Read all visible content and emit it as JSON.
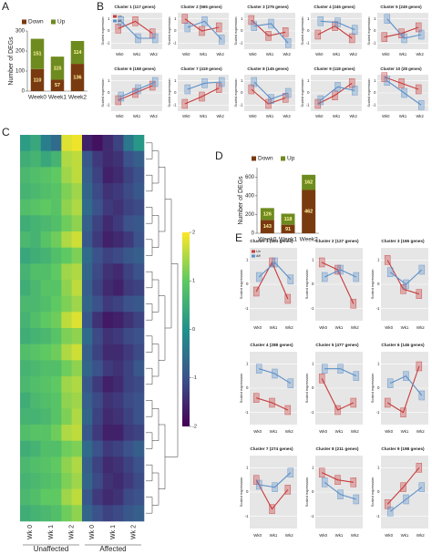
{
  "chart_data": [
    {
      "type": "bar",
      "stacked": true,
      "panel": "A",
      "y_label": "Number of DEGs",
      "categories": [
        "Week0",
        "Week1",
        "Week2"
      ],
      "series": [
        {
          "name": "Down",
          "color": "#7a3a10",
          "values": [
            110,
            57,
            136
          ]
        },
        {
          "name": "Up",
          "color": "#6e8b1f",
          "values": [
            151,
            115,
            114
          ]
        }
      ],
      "ylim": [
        0,
        300
      ],
      "yticks": [
        0,
        100,
        200,
        300
      ]
    },
    {
      "type": "line",
      "panel": "B",
      "title": "Cluster 1 (117 genes)",
      "y_label": "Scaled expression",
      "categories": [
        "Wk0",
        "Wk1",
        "Wk2"
      ],
      "legend": true,
      "series": [
        {
          "name": "Un",
          "color": "#c83a3a",
          "values": [
            0.2,
            0.8,
            -0.2
          ]
        },
        {
          "name": "Aff",
          "color": "#5b8fc9",
          "values": [
            0.8,
            -0.6,
            -0.6
          ]
        }
      ],
      "ylim": [
        -1.5,
        1.5
      ],
      "yticks": [
        -1,
        0,
        1
      ]
    },
    {
      "type": "line",
      "title": "Cluster 2 (565 genes)",
      "y_label": "Scaled expression",
      "categories": [
        "Wk0",
        "Wk1",
        "Wk2"
      ],
      "series": [
        {
          "color": "#c83a3a",
          "values": [
            1.0,
            0.0,
            0.3
          ]
        },
        {
          "color": "#5b8fc9",
          "values": [
            0.3,
            0.8,
            -0.7
          ]
        }
      ],
      "ylim": [
        -1.5,
        1.5
      ],
      "yticks": [
        -1,
        0,
        1
      ]
    },
    {
      "type": "line",
      "title": "Cluster 3 (276 genes)",
      "y_label": "Scaled expression",
      "categories": [
        "Wk0",
        "Wk1",
        "Wk2"
      ],
      "series": [
        {
          "color": "#c83a3a",
          "values": [
            0.9,
            -0.4,
            -0.1
          ]
        },
        {
          "color": "#5b8fc9",
          "values": [
            0.4,
            0.6,
            -1.0
          ]
        }
      ],
      "ylim": [
        -1.5,
        1.5
      ],
      "yticks": [
        -1,
        0,
        1
      ]
    },
    {
      "type": "line",
      "title": "Cluster 4 (245 genes)",
      "y_label": "Scaled expression",
      "categories": [
        "Wk0",
        "Wk1",
        "Wk2"
      ],
      "series": [
        {
          "color": "#c83a3a",
          "values": [
            -0.3,
            0.4,
            -0.6
          ]
        },
        {
          "color": "#5b8fc9",
          "values": [
            0.8,
            0.7,
            0.1
          ]
        }
      ],
      "ylim": [
        -1.5,
        1.5
      ],
      "yticks": [
        -1,
        0,
        1
      ]
    },
    {
      "type": "line",
      "title": "Cluster 5 (249 genes)",
      "y_label": "Scaled expression",
      "categories": [
        "Wk0",
        "Wk1",
        "Wk2"
      ],
      "series": [
        {
          "color": "#c83a3a",
          "values": [
            -0.5,
            -0.2,
            0.3
          ]
        },
        {
          "color": "#5b8fc9",
          "values": [
            1.0,
            -0.6,
            -0.3
          ]
        }
      ],
      "ylim": [
        -1.5,
        1.5
      ],
      "yticks": [
        -1,
        0,
        1
      ]
    },
    {
      "type": "line",
      "title": "Cluster 6 (158 genes)",
      "y_label": "Scaled expression",
      "categories": [
        "Wk0",
        "Wk1",
        "Wk2"
      ],
      "series": [
        {
          "color": "#c83a3a",
          "values": [
            -0.6,
            0.0,
            0.6
          ]
        },
        {
          "color": "#5b8fc9",
          "values": [
            -0.3,
            0.3,
            0.9
          ]
        }
      ],
      "ylim": [
        -1.5,
        1.5
      ],
      "yticks": [
        -1,
        0,
        1
      ]
    },
    {
      "type": "line",
      "title": "Cluster 7 (419 genes)",
      "y_label": "Scaled expression",
      "categories": [
        "Wk0",
        "Wk1",
        "Wk2"
      ],
      "series": [
        {
          "color": "#c83a3a",
          "values": [
            -0.9,
            -0.3,
            0.4
          ]
        },
        {
          "color": "#5b8fc9",
          "values": [
            0.3,
            0.8,
            0.9
          ]
        }
      ],
      "ylim": [
        -1.5,
        1.5
      ],
      "yticks": [
        -1,
        0,
        1
      ]
    },
    {
      "type": "line",
      "title": "Cluster 8 (145 genes)",
      "y_label": "Scaled expression",
      "categories": [
        "Wk0",
        "Wk1",
        "Wk2"
      ],
      "series": [
        {
          "color": "#c83a3a",
          "values": [
            0.3,
            -0.9,
            -0.4
          ]
        },
        {
          "color": "#5b8fc9",
          "values": [
            0.9,
            -0.5,
            0.0
          ]
        }
      ],
      "ylim": [
        -1.5,
        1.5
      ],
      "yticks": [
        -1,
        0,
        1
      ]
    },
    {
      "type": "line",
      "title": "Cluster 9 (118 genes)",
      "y_label": "Scaled expression",
      "categories": [
        "Wk0",
        "Wk1",
        "Wk2"
      ],
      "series": [
        {
          "color": "#c83a3a",
          "values": [
            -0.9,
            -0.2,
            0.8
          ]
        },
        {
          "color": "#5b8fc9",
          "values": [
            -0.6,
            0.5,
            0.2
          ]
        }
      ],
      "ylim": [
        -1.5,
        1.5
      ],
      "yticks": [
        -1,
        0,
        1
      ]
    },
    {
      "type": "line",
      "title": "Cluster 10 (28 genes)",
      "y_label": "Scaled expression",
      "categories": [
        "Wk0",
        "Wk1",
        "Wk2"
      ],
      "series": [
        {
          "color": "#c83a3a",
          "values": [
            1.3,
            0.8,
            0.3
          ]
        },
        {
          "color": "#5b8fc9",
          "values": [
            1.0,
            0.0,
            -1.0
          ]
        }
      ],
      "ylim": [
        -1.5,
        1.5
      ],
      "yticks": [
        -1,
        0,
        1
      ]
    },
    {
      "type": "heatmap",
      "panel": "C",
      "column_labels": [
        "Wk 0",
        "Wk 1",
        "Wk 2",
        "Wk 0",
        "Wk 1",
        "Wk 2"
      ],
      "groups": [
        "Unaffected",
        "Affected"
      ],
      "colors": [
        "#440154",
        "#3b528b",
        "#21918c",
        "#5ec962",
        "#fde725"
      ],
      "zlim": [
        -2,
        2
      ],
      "zticks": [
        -2,
        -1,
        0,
        1,
        2
      ],
      "matrix": [
        [
          0.2,
          0.4,
          -0.3,
          -0.6,
          1.8,
          1.9,
          -1.6,
          -1.8,
          -1.5,
          -1.2,
          -0.4,
          0.1
        ],
        [
          0.5,
          0.6,
          0.4,
          0.6,
          1.5,
          1.6,
          -0.9,
          -1.3,
          -1.5,
          -1.4,
          -1.0,
          -0.8
        ],
        [
          0.7,
          0.8,
          0.9,
          1.0,
          1.4,
          1.6,
          -0.8,
          -1.2,
          -1.6,
          -1.5,
          -1.2,
          -1.0
        ],
        [
          0.6,
          0.7,
          0.8,
          0.9,
          1.2,
          1.4,
          -0.7,
          -1.1,
          -1.4,
          -1.3,
          -1.1,
          -0.9
        ],
        [
          0.8,
          0.9,
          1.0,
          0.9,
          1.3,
          1.5,
          -0.6,
          -1.0,
          -1.3,
          -1.4,
          -1.2,
          -1.1
        ],
        [
          0.5,
          0.6,
          0.7,
          0.8,
          1.1,
          1.3,
          -0.8,
          -1.2,
          -1.5,
          -1.3,
          -1.0,
          -0.9
        ],
        [
          0.7,
          0.6,
          0.9,
          1.1,
          1.5,
          1.7,
          -0.9,
          -1.3,
          -1.6,
          -1.5,
          -1.3,
          -1.0
        ],
        [
          0.4,
          0.5,
          0.6,
          0.8,
          1.0,
          1.2,
          -0.6,
          -1.0,
          -1.2,
          -1.1,
          -0.9,
          -0.8
        ],
        [
          0.6,
          0.8,
          0.8,
          1.0,
          1.4,
          1.5,
          -0.7,
          -1.1,
          -1.4,
          -1.5,
          -1.2,
          -1.0
        ],
        [
          0.5,
          0.7,
          0.9,
          0.9,
          1.3,
          1.6,
          -0.8,
          -1.2,
          -1.5,
          -1.6,
          -1.3,
          -1.2
        ],
        [
          0.7,
          0.7,
          0.8,
          1.0,
          1.2,
          1.4,
          -0.7,
          -1.0,
          -1.3,
          -1.2,
          -1.0,
          -0.9
        ],
        [
          0.6,
          0.8,
          1.0,
          1.1,
          1.6,
          1.8,
          -0.9,
          -1.4,
          -1.7,
          -1.6,
          -1.4,
          -1.2
        ],
        [
          0.5,
          0.6,
          0.7,
          0.9,
          1.2,
          1.3,
          -0.6,
          -1.1,
          -1.4,
          -1.3,
          -1.1,
          -1.0
        ],
        [
          0.8,
          0.9,
          1.0,
          1.1,
          1.5,
          1.7,
          -0.8,
          -1.2,
          -1.5,
          -1.5,
          -1.3,
          -1.1
        ],
        [
          0.6,
          0.7,
          0.8,
          0.8,
          1.1,
          1.3,
          -0.7,
          -1.0,
          -1.3,
          -1.4,
          -1.2,
          -0.9
        ],
        [
          0.7,
          0.8,
          0.9,
          1.0,
          1.4,
          1.5,
          -0.9,
          -1.3,
          -1.6,
          -1.5,
          -1.2,
          -1.1
        ],
        [
          0.5,
          0.7,
          0.8,
          0.9,
          1.3,
          1.4,
          -0.8,
          -1.1,
          -1.4,
          -1.3,
          -1.1,
          -1.0
        ],
        [
          0.6,
          0.6,
          0.7,
          0.9,
          1.2,
          1.5,
          -0.7,
          -1.2,
          -1.5,
          -1.4,
          -1.2,
          -1.0
        ],
        [
          0.8,
          0.9,
          0.9,
          1.1,
          1.5,
          1.6,
          -0.9,
          -1.3,
          -1.6,
          -1.6,
          -1.3,
          -1.2
        ],
        [
          0.5,
          0.6,
          0.8,
          0.8,
          1.1,
          1.2,
          -0.6,
          -1.0,
          -1.3,
          -1.2,
          -1.0,
          -0.8
        ],
        [
          0.7,
          0.8,
          0.9,
          1.0,
          1.3,
          1.5,
          -0.8,
          -1.2,
          -1.5,
          -1.4,
          -1.2,
          -1.0
        ],
        [
          0.6,
          0.7,
          0.8,
          0.9,
          1.2,
          1.4,
          -0.7,
          -1.1,
          -1.4,
          -1.5,
          -1.3,
          -1.1
        ],
        [
          0.7,
          0.8,
          1.0,
          1.0,
          1.4,
          1.6,
          -0.9,
          -1.3,
          -1.5,
          -1.4,
          -1.1,
          -1.0
        ],
        [
          0.5,
          0.6,
          0.7,
          0.8,
          1.1,
          1.3,
          -0.7,
          -1.0,
          -1.2,
          -1.1,
          -0.9,
          -0.8
        ]
      ]
    },
    {
      "type": "bar",
      "stacked": true,
      "panel": "D",
      "y_label": "Number of DEGs",
      "categories": [
        "Week0",
        "Week1",
        "Week2"
      ],
      "series": [
        {
          "name": "Down",
          "color": "#7a3a10",
          "values": [
            143,
            91,
            462
          ]
        },
        {
          "name": "Up",
          "color": "#6e8b1f",
          "values": [
            126,
            118,
            162
          ]
        }
      ],
      "ylim": [
        0,
        700
      ],
      "yticks": [
        0,
        200,
        400,
        600
      ]
    },
    {
      "type": "line",
      "panel": "E",
      "title": "Cluster 1 (404 genes)",
      "y_label": "Scaled expression",
      "categories": [
        "Wk0",
        "Wk1",
        "Wk2"
      ],
      "legend": true,
      "series": [
        {
          "name": "Un",
          "color": "#c83a3a",
          "values": [
            -0.3,
            0.9,
            -0.6
          ]
        },
        {
          "name": "Aff",
          "color": "#5b8fc9",
          "values": [
            0.3,
            0.9,
            0.2
          ]
        }
      ],
      "ylim": [
        -1.5,
        1.5
      ],
      "yticks": [
        -1,
        0,
        1
      ]
    },
    {
      "type": "line",
      "title": "Cluster 2 (127 genes)",
      "y_label": "Scaled expression",
      "categories": [
        "Wk0",
        "Wk1",
        "Wk2"
      ],
      "series": [
        {
          "color": "#c83a3a",
          "values": [
            0.9,
            0.6,
            -0.8
          ]
        },
        {
          "color": "#5b8fc9",
          "values": [
            0.3,
            0.6,
            0.3
          ]
        }
      ],
      "ylim": [
        -1.5,
        1.5
      ],
      "yticks": [
        -1,
        0,
        1
      ]
    },
    {
      "type": "line",
      "title": "Cluster 3 (165 genes)",
      "y_label": "Scaled expression",
      "categories": [
        "Wk0",
        "Wk1",
        "Wk2"
      ],
      "series": [
        {
          "color": "#c83a3a",
          "values": [
            1.0,
            -0.2,
            -0.4
          ]
        },
        {
          "color": "#5b8fc9",
          "values": [
            0.5,
            0.0,
            0.6
          ]
        }
      ],
      "ylim": [
        -1.5,
        1.5
      ],
      "yticks": [
        -1,
        0,
        1
      ]
    },
    {
      "type": "line",
      "title": "Cluster 4 (288 genes)",
      "y_label": "Scaled expression",
      "categories": [
        "Wk0",
        "Wk1",
        "Wk2"
      ],
      "series": [
        {
          "color": "#c83a3a",
          "values": [
            -0.4,
            -0.6,
            -0.9
          ]
        },
        {
          "color": "#5b8fc9",
          "values": [
            0.8,
            0.6,
            0.2
          ]
        }
      ],
      "ylim": [
        -1.5,
        1.5
      ],
      "yticks": [
        -1,
        0,
        1
      ]
    },
    {
      "type": "line",
      "title": "Cluster 5 (477 genes)",
      "y_label": "Scaled expression",
      "categories": [
        "Wk0",
        "Wk1",
        "Wk2"
      ],
      "series": [
        {
          "color": "#c83a3a",
          "values": [
            0.4,
            -0.9,
            -0.6
          ]
        },
        {
          "color": "#5b8fc9",
          "values": [
            0.8,
            0.8,
            0.5
          ]
        }
      ],
      "ylim": [
        -1.5,
        1.5
      ],
      "yticks": [
        -1,
        0,
        1
      ]
    },
    {
      "type": "line",
      "title": "Cluster 6 (146 genes)",
      "y_label": "Scaled expression",
      "categories": [
        "Wk0",
        "Wk1",
        "Wk2"
      ],
      "series": [
        {
          "color": "#c83a3a",
          "values": [
            -0.6,
            -1.0,
            0.9
          ]
        },
        {
          "color": "#5b8fc9",
          "values": [
            0.2,
            0.5,
            -0.3
          ]
        }
      ],
      "ylim": [
        -1.5,
        1.5
      ],
      "yticks": [
        -1,
        0,
        1
      ]
    },
    {
      "type": "line",
      "title": "Cluster 7 (274 genes)",
      "y_label": "Scaled expression",
      "categories": [
        "Wk0",
        "Wk1",
        "Wk2"
      ],
      "series": [
        {
          "color": "#c83a3a",
          "values": [
            0.5,
            -0.7,
            0.1
          ]
        },
        {
          "color": "#5b8fc9",
          "values": [
            0.3,
            0.2,
            0.8
          ]
        }
      ],
      "ylim": [
        -1.5,
        1.5
      ],
      "yticks": [
        -1,
        0,
        1
      ]
    },
    {
      "type": "line",
      "title": "Cluster 8 (211 genes)",
      "y_label": "Scaled expression",
      "categories": [
        "Wk0",
        "Wk1",
        "Wk2"
      ],
      "series": [
        {
          "color": "#c83a3a",
          "values": [
            0.8,
            0.5,
            0.4
          ]
        },
        {
          "color": "#5b8fc9",
          "values": [
            0.4,
            -0.1,
            -0.3
          ]
        }
      ],
      "ylim": [
        -1.5,
        1.5
      ],
      "yticks": [
        -1,
        0,
        1
      ]
    },
    {
      "type": "line",
      "title": "Cluster 9 (198 genes)",
      "y_label": "Scaled expression",
      "categories": [
        "Wk0",
        "Wk1",
        "Wk2"
      ],
      "series": [
        {
          "color": "#c83a3a",
          "values": [
            -0.5,
            0.2,
            1.0
          ]
        },
        {
          "color": "#5b8fc9",
          "values": [
            -0.8,
            -0.3,
            0.2
          ]
        }
      ],
      "ylim": [
        -1.5,
        1.5
      ],
      "yticks": [
        -1,
        0,
        1
      ]
    }
  ]
}
